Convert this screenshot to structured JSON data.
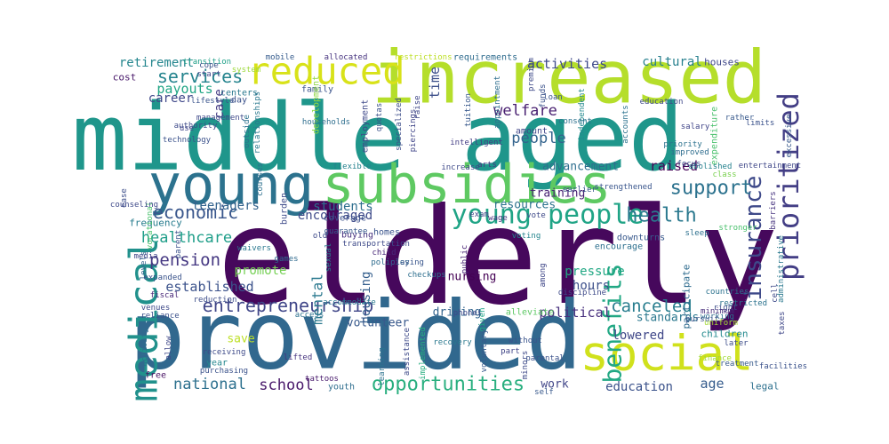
{
  "words": [
    {
      "text": "elderly",
      "color": "#46085c"
    },
    {
      "text": "middle aged",
      "color": "#1f968b"
    },
    {
      "text": "provided",
      "color": "#31688e"
    },
    {
      "text": "increased",
      "color": "#b5de2b"
    },
    {
      "text": "young",
      "color": "#2c728e"
    },
    {
      "text": "subsidies",
      "color": "#5ec962"
    },
    {
      "text": "social",
      "color": "#d0e11c"
    },
    {
      "text": "medical",
      "color": "#21918c"
    },
    {
      "text": "reduced",
      "color": "#d8e219"
    },
    {
      "text": "young people",
      "color": "#20a486"
    },
    {
      "text": "prioritized",
      "color": "#433e85"
    },
    {
      "text": "benefits",
      "color": "#22a884"
    },
    {
      "text": "insurance",
      "color": "#3e4989"
    },
    {
      "text": "opportunities",
      "color": "#29af7f"
    },
    {
      "text": "health",
      "color": "#2a788e"
    },
    {
      "text": "support",
      "color": "#2c728e"
    },
    {
      "text": "economic",
      "color": "#39568c"
    },
    {
      "text": "services",
      "color": "#25848e"
    },
    {
      "text": "entrepreneurship",
      "color": "#404688"
    },
    {
      "text": "pension",
      "color": "#453882"
    },
    {
      "text": "canceled",
      "color": "#287d8e"
    },
    {
      "text": "healthcare",
      "color": "#1f9e89"
    },
    {
      "text": "national",
      "color": "#2d708e"
    },
    {
      "text": "welfare",
      "color": "#481f70"
    },
    {
      "text": "school",
      "color": "#48186a"
    },
    {
      "text": "people",
      "color": "#33638d"
    },
    {
      "text": "mental",
      "color": "#2a788e"
    },
    {
      "text": "established",
      "color": "#3b528b"
    },
    {
      "text": "raised",
      "color": "#450457"
    },
    {
      "text": "political",
      "color": "#472f7d"
    },
    {
      "text": "activities",
      "color": "#3e4a89"
    },
    {
      "text": "time",
      "color": "#3c4f8a"
    },
    {
      "text": "payouts",
      "color": "#21a685"
    },
    {
      "text": "retirement",
      "color": "#24868e"
    },
    {
      "text": "lowered",
      "color": "#3f4788"
    },
    {
      "text": "age",
      "color": "#365d8d"
    },
    {
      "text": "education",
      "color": "#3b528b"
    },
    {
      "text": "hours",
      "color": "#3c4f8a"
    },
    {
      "text": "housing",
      "color": "#355f8d"
    },
    {
      "text": "career",
      "color": "#3f4889"
    },
    {
      "text": "promote",
      "color": "#75d054"
    },
    {
      "text": "pressure",
      "color": "#22a884"
    },
    {
      "text": "students",
      "color": "#2e6e8e"
    },
    {
      "text": "encouraged",
      "color": "#3e4a89"
    },
    {
      "text": "cultural",
      "color": "#27808e"
    },
    {
      "text": "care",
      "color": "#443a83"
    },
    {
      "text": "teenagers",
      "color": "#33638d"
    },
    {
      "text": "standards",
      "color": "#2a778e"
    },
    {
      "text": "training",
      "color": "#482173"
    },
    {
      "text": "resources",
      "color": "#2c728e"
    },
    {
      "text": "volunteer",
      "color": "#38598c"
    },
    {
      "text": "driving",
      "color": "#32648e"
    },
    {
      "text": "work",
      "color": "#404588"
    },
    {
      "text": "save",
      "color": "#bddf26"
    },
    {
      "text": "nursing",
      "color": "#440154"
    },
    {
      "text": "advancement",
      "color": "#2e6e8e"
    },
    {
      "text": "houses",
      "color": "#3f4788"
    },
    {
      "text": "children",
      "color": "#23898e"
    },
    {
      "text": "frequency",
      "color": "#287c8e"
    },
    {
      "text": "employment",
      "color": "#3e4989"
    },
    {
      "text": "cost",
      "color": "#48186a"
    },
    {
      "text": "participate",
      "color": "#2f6c8e"
    },
    {
      "text": "legal",
      "color": "#2d708e"
    },
    {
      "text": "youth",
      "color": "#2e6e8e"
    },
    {
      "text": "coverage",
      "color": "#3b518b"
    },
    {
      "text": "family",
      "color": "#3a538b"
    },
    {
      "text": "free",
      "color": "#471063"
    },
    {
      "text": "year",
      "color": "#24878e"
    },
    {
      "text": "encourage",
      "color": "#2d708e"
    },
    {
      "text": "development",
      "color": "#8fd744"
    },
    {
      "text": "buying",
      "color": "#46307e"
    },
    {
      "text": "downturns",
      "color": "#38598c"
    },
    {
      "text": "requirements",
      "color": "#2f6c8e"
    },
    {
      "text": "homes",
      "color": "#3a548c"
    },
    {
      "text": "alleviate",
      "color": "#5cc863"
    },
    {
      "text": "amount",
      "color": "#404588"
    },
    {
      "text": "expenditure",
      "color": "#4ac16d"
    },
    {
      "text": "centers",
      "color": "#2a788e"
    },
    {
      "text": "burden",
      "color": "#3e4a89"
    },
    {
      "text": "day",
      "color": "#3b518b"
    },
    {
      "text": "transition",
      "color": "#1fa088"
    },
    {
      "text": "vocational",
      "color": "#4ac16d"
    },
    {
      "text": "system",
      "color": "#9dd93b"
    },
    {
      "text": "cope",
      "color": "#3b528b"
    },
    {
      "text": "start",
      "color": "#404588"
    },
    {
      "text": "mobile",
      "color": "#365c8d"
    },
    {
      "text": "allocated",
      "color": "#46337f"
    },
    {
      "text": "restrictions",
      "color": "#bddf26"
    },
    {
      "text": "raise",
      "color": "#3f4788"
    },
    {
      "text": "independent",
      "color": "#23898e"
    },
    {
      "text": "intelligent",
      "color": "#433d84"
    },
    {
      "text": "flexible",
      "color": "#26828e"
    },
    {
      "text": "increase",
      "color": "#3e4989"
    },
    {
      "text": "arts",
      "color": "#453781"
    },
    {
      "text": "consent",
      "color": "#2c718e"
    },
    {
      "text": "priority",
      "color": "#2c728e"
    },
    {
      "text": "excessive",
      "color": "#38598c"
    },
    {
      "text": "entertainment",
      "color": "#3f4788"
    },
    {
      "text": "improved",
      "color": "#2e6d8e"
    },
    {
      "text": "abolished",
      "color": "#26828e"
    },
    {
      "text": "focus",
      "color": "#3b528b"
    },
    {
      "text": "class",
      "color": "#7ad151"
    },
    {
      "text": "strengthened",
      "color": "#39558c"
    },
    {
      "text": "earlier",
      "color": "#38588c"
    },
    {
      "text": "exam",
      "color": "#404588"
    },
    {
      "text": "wage",
      "color": "#46307e"
    },
    {
      "text": "vote",
      "color": "#3e4989"
    },
    {
      "text": "voting",
      "color": "#25858e"
    },
    {
      "text": "sleep",
      "color": "#2d708e"
    },
    {
      "text": "stronger",
      "color": "#4ac16d"
    },
    {
      "text": "barriers",
      "color": "#46337f"
    },
    {
      "text": "waivers",
      "color": "#2a788e"
    },
    {
      "text": "games",
      "color": "#2f6b8e"
    },
    {
      "text": "old",
      "color": "#3e4a89"
    },
    {
      "text": "sexual",
      "color": "#277f8e"
    },
    {
      "text": "guarantee",
      "color": "#37598c"
    },
    {
      "text": "transportation",
      "color": "#3e4a89"
    },
    {
      "text": "child",
      "color": "#482878"
    },
    {
      "text": "policies",
      "color": "#2f6c8e"
    },
    {
      "text": "playing",
      "color": "#39568c"
    },
    {
      "text": "checkups",
      "color": "#2e6f8e"
    },
    {
      "text": "public",
      "color": "#482475"
    },
    {
      "text": "phones",
      "color": "#3f4889"
    },
    {
      "text": "given",
      "color": "#20a386"
    },
    {
      "text": "among",
      "color": "#3f4788"
    },
    {
      "text": "discipline",
      "color": "#3e4a89"
    },
    {
      "text": "countries",
      "color": "#2c728e"
    },
    {
      "text": "right",
      "color": "#3d4e8a"
    },
    {
      "text": "working",
      "color": "#2e6e8e"
    },
    {
      "text": "pursuit",
      "color": "#3b528b"
    },
    {
      "text": "minimum",
      "color": "#472c7a"
    },
    {
      "text": "uniform",
      "color": "#a5db36"
    },
    {
      "text": "later",
      "color": "#3d4d8a"
    },
    {
      "text": "treatment",
      "color": "#375a8c"
    },
    {
      "text": "facilities",
      "color": "#3b528b"
    },
    {
      "text": "taxes",
      "color": "#3f4788"
    },
    {
      "text": "restricted",
      "color": "#2c738e"
    },
    {
      "text": "finance",
      "color": "#a2da37"
    },
    {
      "text": "levels",
      "color": "#33638d"
    },
    {
      "text": "media",
      "color": "#404588"
    },
    {
      "text": "expanded",
      "color": "#3a538b"
    },
    {
      "text": "fiscal",
      "color": "#482878"
    },
    {
      "text": "venues",
      "color": "#3e4989"
    },
    {
      "text": "reliance",
      "color": "#3b518b"
    },
    {
      "text": "activity",
      "color": "#2e6e8e"
    },
    {
      "text": "allow",
      "color": "#3f4889"
    },
    {
      "text": "receiving",
      "color": "#3e4a89"
    },
    {
      "text": "purchasing",
      "color": "#3b528b"
    },
    {
      "text": "lifted",
      "color": "#46337f"
    },
    {
      "text": "tattoos",
      "color": "#481a6c"
    },
    {
      "text": "learning",
      "color": "#2c728e"
    },
    {
      "text": "assistance",
      "color": "#3e4a89"
    },
    {
      "text": "implemented",
      "color": "#28ae80"
    },
    {
      "text": "recovery",
      "color": "#2a788e"
    },
    {
      "text": "voluntary",
      "color": "#38598c"
    },
    {
      "text": "part",
      "color": "#404588"
    },
    {
      "text": "without",
      "color": "#3a548c"
    },
    {
      "text": "minors",
      "color": "#3e4a89"
    },
    {
      "text": "parental",
      "color": "#3b528b"
    },
    {
      "text": "self",
      "color": "#38598c"
    },
    {
      "text": "access",
      "color": "#2c718e"
    },
    {
      "text": "accommodate",
      "color": "#2a788e"
    },
    {
      "text": "ease",
      "color": "#3d4e8a"
    },
    {
      "text": "counseling",
      "color": "#3e4989"
    },
    {
      "text": "parent",
      "color": "#3b528b"
    },
    {
      "text": "courses",
      "color": "#2d708e"
    },
    {
      "text": "use",
      "color": "#404588"
    },
    {
      "text": "technology",
      "color": "#3b528b"
    },
    {
      "text": "authority",
      "color": "#3e4a89"
    },
    {
      "text": "lifestyle",
      "color": "#3a548c"
    },
    {
      "text": "outside",
      "color": "#2c718e"
    },
    {
      "text": "management",
      "color": "#3e4989"
    },
    {
      "text": "relationships",
      "color": "#2a788e"
    },
    {
      "text": "quotas",
      "color": "#3b528b"
    },
    {
      "text": "specialized",
      "color": "#3d4e8a"
    },
    {
      "text": "piercings",
      "color": "#404588"
    },
    {
      "text": "tuition",
      "color": "#38598c"
    },
    {
      "text": "appointment",
      "color": "#2e6e8e"
    },
    {
      "text": "premium",
      "color": "#3e4a89"
    },
    {
      "text": "funds",
      "color": "#3b528b"
    },
    {
      "text": "loan",
      "color": "#3a548c"
    },
    {
      "text": "accounts",
      "color": "#2c728e"
    },
    {
      "text": "education",
      "color": "#3e4989"
    },
    {
      "text": "salary",
      "color": "#404588"
    },
    {
      "text": "rather",
      "color": "#38598c"
    },
    {
      "text": "limits",
      "color": "#3b528b"
    },
    {
      "text": "cell",
      "color": "#3e4a89"
    },
    {
      "text": "administrative",
      "color": "#2a788e"
    },
    {
      "text": "reduction",
      "color": "#3d4e8a"
    },
    {
      "text": "households",
      "color": "#2e6e8e"
    },
    {
      "text": "job",
      "color": "#3b528b"
    }
  ]
}
